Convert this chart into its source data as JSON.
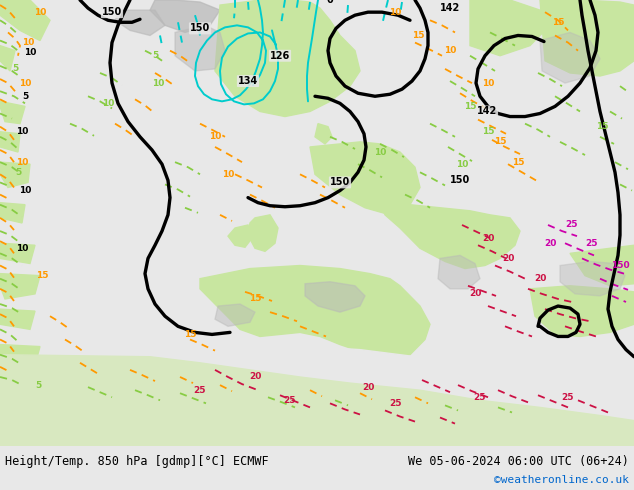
{
  "title_left": "Height/Temp. 850 hPa [gdmp][°C] ECMWF",
  "title_right": "We 05-06-2024 06:00 UTC (06+24)",
  "watermark": "©weatheronline.co.uk",
  "bg_color": "#e8e8e8",
  "land_green": "#c8e6a0",
  "land_grey": "#b8b8b8",
  "bottom_bar_color": "#f0f0f0",
  "bottom_text_color": "#000000",
  "watermark_color": "#0066cc",
  "fig_width": 6.34,
  "fig_height": 4.9,
  "dpi": 100,
  "black_lw": 2.4,
  "cyan_lw": 1.4,
  "green_lw": 1.3,
  "orange_lw": 1.3,
  "red_lw": 1.3,
  "magenta_lw": 1.3
}
